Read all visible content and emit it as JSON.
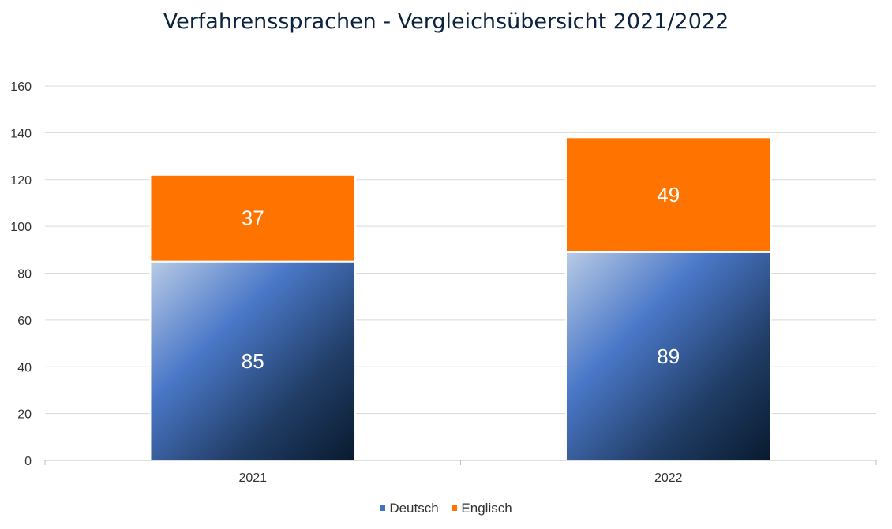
{
  "chart_data": {
    "type": "bar",
    "stacked": true,
    "title": "Verfahrenssprachen - Vergleichsübersicht 2021/2022",
    "categories": [
      "2021",
      "2022"
    ],
    "series": [
      {
        "name": "Deutsch",
        "values": [
          85,
          89
        ],
        "color": "#4472c4"
      },
      {
        "name": "Englisch",
        "values": [
          37,
          49
        ],
        "color": "#ff7300"
      }
    ],
    "ylim": [
      0,
      160
    ],
    "yticks": [
      0,
      20,
      40,
      60,
      80,
      100,
      120,
      140,
      160
    ],
    "grid": true,
    "legend_position": "bottom",
    "data_labels": true
  }
}
